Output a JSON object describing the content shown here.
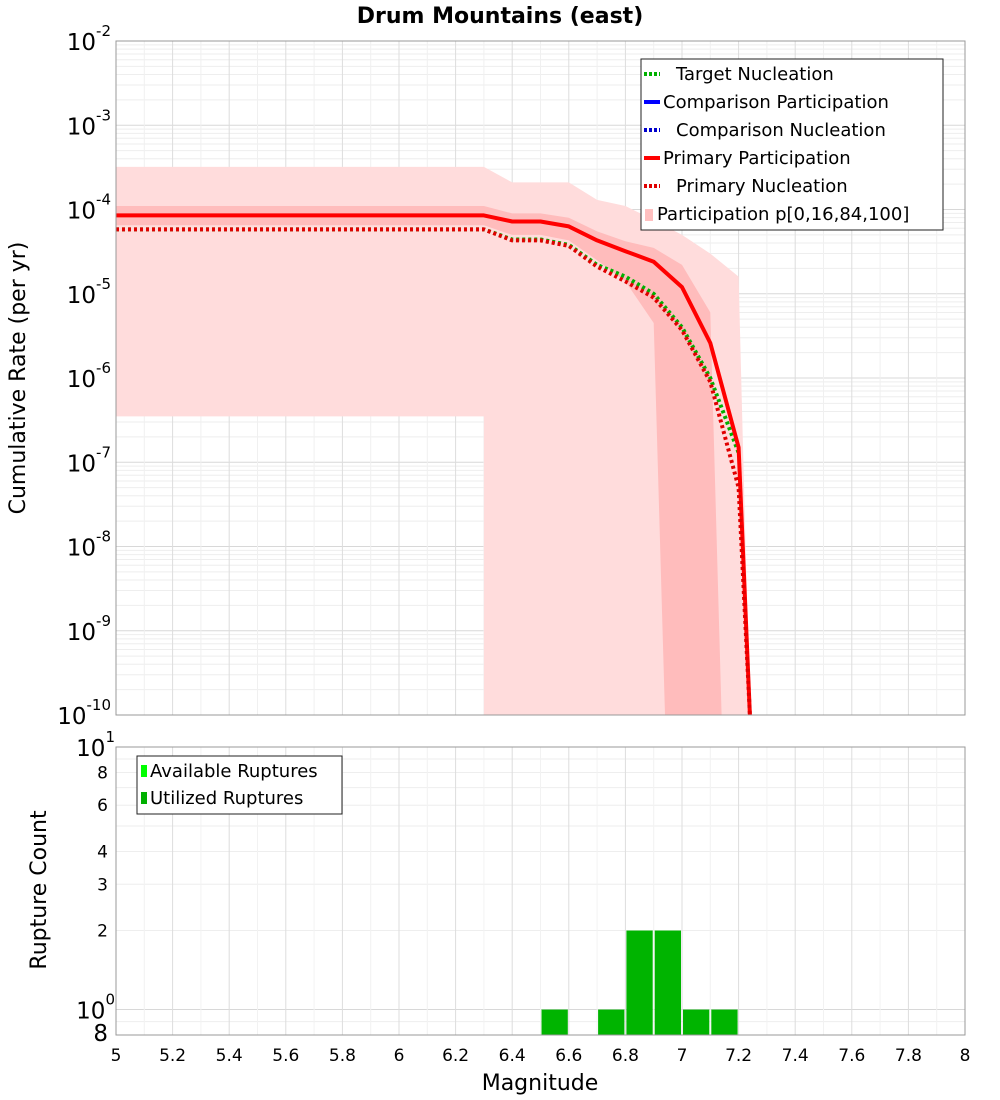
{
  "chart_data": [
    {
      "type": "line",
      "title": "Drum Mountains (east)",
      "ylabel": "Cumulative Rate (per yr)",
      "xlabel": "",
      "yscale": "log",
      "xlim": [
        5,
        8
      ],
      "ylim": [
        1e-10,
        0.01
      ],
      "y_decade_labels": [
        {
          "base": "10",
          "exp": "-10",
          "value": 1e-10
        },
        {
          "base": "10",
          "exp": "-9",
          "value": 1e-09
        },
        {
          "base": "10",
          "exp": "-8",
          "value": 1e-08
        },
        {
          "base": "10",
          "exp": "-7",
          "value": 1e-07
        },
        {
          "base": "10",
          "exp": "-6",
          "value": 1e-06
        },
        {
          "base": "10",
          "exp": "-5",
          "value": 1e-05
        },
        {
          "base": "10",
          "exp": "-4",
          "value": 0.0001
        },
        {
          "base": "10",
          "exp": "-3",
          "value": 0.001
        },
        {
          "base": "10",
          "exp": "-2",
          "value": 0.01
        }
      ],
      "grid": true,
      "legend_position": "top-right",
      "legend": [
        {
          "name": "Target Nucleation",
          "color": "#00b000",
          "style": "dotted"
        },
        {
          "name": "Comparison Participation",
          "color": "#0000ff",
          "style": "solid"
        },
        {
          "name": "Comparison Nucleation",
          "color": "#0000cc",
          "style": "dotted"
        },
        {
          "name": "Primary Participation",
          "color": "#ff0000",
          "style": "solid"
        },
        {
          "name": "Primary Nucleation",
          "color": "#e00000",
          "style": "dotted"
        },
        {
          "name": "Participation p[0,16,84,100]",
          "color": "#ffc0c0",
          "style": "band"
        }
      ],
      "bands": [
        {
          "name": "p0-p100",
          "color": "#ffdcdc",
          "x": [
            5.0,
            6.3,
            6.3,
            6.4,
            6.5,
            6.6,
            6.7,
            6.8,
            6.9,
            7.0,
            7.1,
            7.2,
            7.2
          ],
          "upper": [
            0.00032,
            0.00032,
            0.00032,
            0.00021,
            0.00021,
            0.00021,
            0.00013,
            0.00011,
            7.5e-05,
            5e-05,
            3e-05,
            1.6e-05,
            1.6e-05
          ],
          "lower": [
            3.5e-07,
            3.5e-07,
            1e-10,
            1e-10,
            1e-10,
            1e-10,
            1e-10,
            1e-10,
            1e-10,
            1e-10,
            1e-10,
            1e-10,
            1e-10
          ],
          "lower_edge": [
            [
              5.0,
              3.5e-07
            ],
            [
              6.3,
              3.5e-07
            ],
            [
              6.3,
              1e-10
            ],
            [
              6.33,
              1e-10
            ],
            [
              6.33,
              1e-12
            ],
            [
              7.24,
              1e-12
            ],
            [
              7.24,
              1e-10
            ]
          ]
        },
        {
          "name": "p16-p84",
          "color": "#ffbcbc",
          "x": [
            5.0,
            6.3,
            6.4,
            6.5,
            6.6,
            6.7,
            6.8,
            6.9,
            7.0,
            7.1,
            7.2
          ],
          "upper": [
            0.00011,
            0.00011,
            9e-05,
            9e-05,
            8e-05,
            5.5e-05,
            4.2e-05,
            3.5e-05,
            2.2e-05,
            6e-06,
            2e-07
          ],
          "lower": [
            6.5e-05,
            6.5e-05,
            5e-05,
            5e-05,
            4.3e-05,
            2.5e-05,
            1.4e-05,
            4.5e-06,
            1e-10,
            1e-10,
            1e-10
          ],
          "polygon": [
            [
              5.0,
              0.00011
            ],
            [
              6.3,
              0.00011
            ],
            [
              6.4,
              9e-05
            ],
            [
              6.5,
              9e-05
            ],
            [
              6.6,
              8e-05
            ],
            [
              6.7,
              5.5e-05
            ],
            [
              6.8,
              4.2e-05
            ],
            [
              6.9,
              3.5e-05
            ],
            [
              7.0,
              2.2e-05
            ],
            [
              7.1,
              6e-06
            ],
            [
              7.14,
              1e-10
            ],
            [
              6.94,
              1e-10
            ],
            [
              6.9,
              4.5e-06
            ],
            [
              6.8,
              1.4e-05
            ],
            [
              6.7,
              2.5e-05
            ],
            [
              6.6,
              4.3e-05
            ],
            [
              6.5,
              5e-05
            ],
            [
              6.4,
              5e-05
            ],
            [
              6.3,
              6.5e-05
            ],
            [
              5.0,
              6.5e-05
            ]
          ]
        }
      ],
      "series": [
        {
          "name": "Target Nucleation",
          "color": "#00b000",
          "style": "dotted",
          "x": [
            5.0,
            6.3,
            6.4,
            6.5,
            6.6,
            6.7,
            6.8,
            6.9,
            7.0,
            7.1,
            7.2
          ],
          "y": [
            5.8e-05,
            5.8e-05,
            4.4e-05,
            4.4e-05,
            3.8e-05,
            2.2e-05,
            1.6e-05,
            1e-05,
            4e-06,
            1e-06,
            1.3e-07
          ]
        },
        {
          "name": "Primary Participation",
          "color": "#ff0000",
          "style": "solid",
          "x": [
            5.0,
            6.3,
            6.4,
            6.5,
            6.6,
            6.7,
            6.8,
            6.9,
            7.0,
            7.1,
            7.2,
            7.24
          ],
          "y": [
            8.5e-05,
            8.5e-05,
            7.2e-05,
            7.2e-05,
            6.3e-05,
            4.3e-05,
            3.2e-05,
            2.4e-05,
            1.2e-05,
            2.6e-06,
            1.5e-07,
            1e-10
          ]
        },
        {
          "name": "Primary Nucleation",
          "color": "#e00000",
          "style": "dotted",
          "x": [
            5.0,
            6.3,
            6.4,
            6.5,
            6.6,
            6.7,
            6.8,
            6.9,
            7.0,
            7.1,
            7.2,
            7.24
          ],
          "y": [
            5.8e-05,
            5.8e-05,
            4.3e-05,
            4.3e-05,
            3.7e-05,
            2.1e-05,
            1.4e-05,
            9e-06,
            3.7e-06,
            9e-07,
            5e-08,
            1e-10
          ]
        }
      ]
    },
    {
      "type": "bar",
      "title": "",
      "xlabel": "Magnitude",
      "ylabel": "Rupture Count",
      "xlim": [
        5,
        8
      ],
      "x_ticks": [
        "5",
        "5.2",
        "5.4",
        "5.6",
        "5.8",
        "6",
        "6.2",
        "6.4",
        "6.6",
        "6.8",
        "7",
        "7.2",
        "7.4",
        "7.6",
        "7.8",
        "8"
      ],
      "yscale": "log",
      "ylim": [
        0.8,
        10
      ],
      "y_plain_ticks": [
        {
          "label": "8",
          "value": 8
        },
        {
          "label": "6",
          "value": 6
        },
        {
          "label": "4",
          "value": 4
        },
        {
          "label": "3",
          "value": 3
        },
        {
          "label": "2",
          "value": 2
        },
        {
          "label": "8",
          "value": 0.8
        }
      ],
      "y_decade_labels": [
        {
          "base": "10",
          "exp": "1",
          "value": 10
        },
        {
          "base": "10",
          "exp": "0",
          "value": 1
        }
      ],
      "grid": true,
      "legend_position": "top-left",
      "legend": [
        {
          "name": "Available Ruptures",
          "color": "#00ff00"
        },
        {
          "name": "Utilized Ruptures",
          "color": "#00b000"
        }
      ],
      "bar_width": 0.1,
      "series": [
        {
          "name": "Utilized Ruptures",
          "color": "#00b400",
          "x": [
            6.55,
            6.75,
            6.85,
            6.95,
            7.05,
            7.15
          ],
          "values": [
            1,
            1,
            2,
            2,
            1,
            1
          ]
        }
      ]
    }
  ]
}
